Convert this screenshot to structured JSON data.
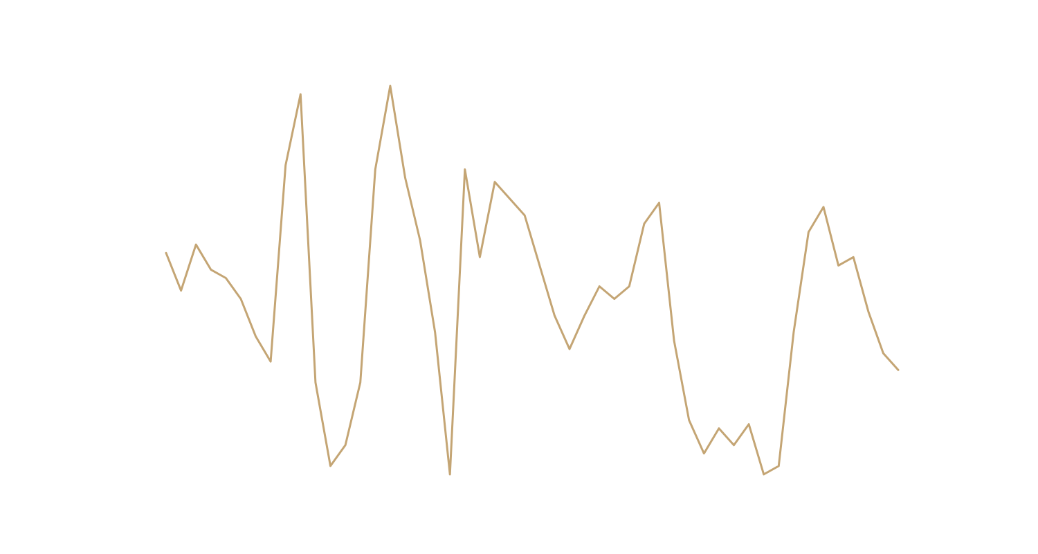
{
  "chart_data": {
    "type": "line",
    "x": [
      0,
      1,
      2,
      3,
      4,
      5,
      6,
      7,
      8,
      9,
      10,
      11,
      12,
      13,
      14,
      15,
      16,
      17,
      18,
      19,
      20,
      21,
      22,
      23,
      24,
      25,
      26,
      27,
      28,
      29,
      30,
      31,
      32,
      33,
      34,
      35,
      36,
      37,
      38,
      39,
      40,
      41,
      42,
      43,
      44,
      45,
      46,
      47,
      48,
      49
    ],
    "series": [
      {
        "color": "#c4a574",
        "values": [
          0.3,
          -0.6,
          0.5,
          -0.1,
          -0.3,
          -0.8,
          -1.7,
          -2.3,
          2.4,
          4.1,
          -2.8,
          -4.8,
          -4.3,
          -2.8,
          2.3,
          4.3,
          2.1,
          0.6,
          -1.6,
          -5.0,
          2.3,
          0.2,
          2.0,
          1.6,
          1.2,
          0.0,
          -1.2,
          -2.0,
          -1.2,
          -0.5,
          -0.8,
          -0.5,
          1.0,
          1.5,
          -1.8,
          -3.7,
          -4.5,
          -3.9,
          -4.3,
          -3.8,
          -5.0,
          -4.8,
          -1.6,
          0.8,
          1.4,
          0.0,
          0.2,
          -1.1,
          -2.1,
          -2.5
        ]
      }
    ]
  }
}
